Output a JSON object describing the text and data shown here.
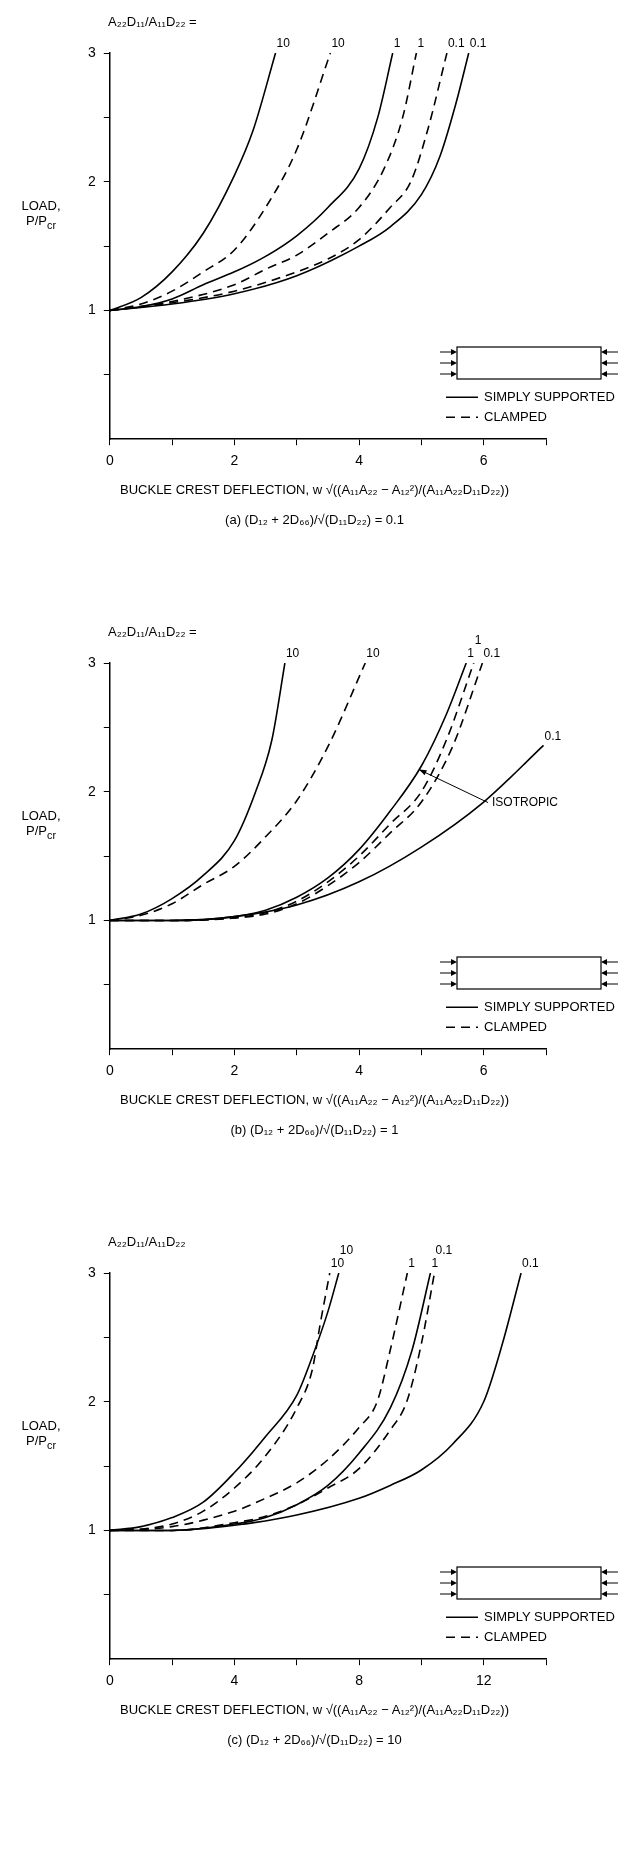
{
  "chart_data": [
    {
      "type": "line",
      "subtitle": "(a)   (D₁₂ + 2D₆₆)/√(D₁₁D₂₂)  =  0.1",
      "xlabel": "BUCKLE CREST DEFLECTION,  w √((A₁₁A₂₂ − A₁₂²)/(A₁₁A₂₂D₁₁D₂₂))",
      "ylabel": "LOAD, P/P$_{cr}$",
      "xlim": [
        0,
        7
      ],
      "xticks": [
        0,
        {
          "value": 1,
          "label": null
        },
        2,
        {
          "value": 3,
          "label": null
        },
        4,
        {
          "value": 5,
          "label": null
        },
        6,
        {
          "value": 7,
          "label": null
        }
      ],
      "ylim": [
        0,
        3
      ],
      "yticks": [
        {
          "value": 0.5,
          "label": null
        },
        1,
        {
          "value": 1.5,
          "label": null
        },
        2,
        {
          "value": 2.5,
          "label": null
        },
        3
      ],
      "grid": false,
      "legend": "bottom right",
      "marker": "none",
      "series": [
        {
          "name": "SIMPLY SUPPORTED",
          "color": "#000000",
          "line_style": "solid",
          "x": [
            0,
            0.5,
            1,
            1.5,
            2,
            2.3,
            2.66
          ],
          "values": [
            1,
            1.1,
            1.3,
            1.6,
            2.05,
            2.4,
            3
          ]
        },
        {
          "name": "CLAMPED",
          "color": "#000000",
          "line_style": "dashed",
          "x": [
            0,
            0.5,
            1,
            1.5,
            2,
            2.5,
            3,
            3.54
          ],
          "values": [
            1,
            1.05,
            1.15,
            1.3,
            1.47,
            1.8,
            2.25,
            3
          ]
        },
        {
          "color": "#000000",
          "line_style": "solid",
          "x": [
            0,
            0.5,
            1,
            1.5,
            2,
            2.5,
            3,
            3.5,
            4,
            4.3,
            4.54
          ],
          "values": [
            1,
            1.03,
            1.09,
            1.2,
            1.3,
            1.42,
            1.58,
            1.8,
            2.1,
            2.5,
            3
          ]
        },
        {
          "color": "#000000",
          "line_style": "dashed",
          "x": [
            0,
            1,
            2,
            2.5,
            3,
            3.5,
            4,
            4.4,
            4.7,
            4.92
          ],
          "values": [
            1,
            1.07,
            1.2,
            1.32,
            1.43,
            1.6,
            1.8,
            2.1,
            2.5,
            3
          ]
        },
        {
          "color": "#000000",
          "line_style": "dashed",
          "x": [
            0,
            1,
            2,
            3,
            3.5,
            4,
            4.5,
            4.83,
            5.1,
            5.41
          ],
          "values": [
            1,
            1.06,
            1.15,
            1.3,
            1.4,
            1.55,
            1.8,
            2,
            2.4,
            3
          ]
        },
        {
          "color": "#000000",
          "line_style": "solid",
          "x": [
            0,
            1,
            2,
            3,
            4,
            4.5,
            5,
            5.3,
            5.55,
            5.76
          ],
          "values": [
            1,
            1.05,
            1.13,
            1.27,
            1.5,
            1.65,
            1.9,
            2.2,
            2.6,
            3
          ]
        }
      ],
      "annotations": [
        "A₂₂D₁₁/A₁₁D₂₂  =",
        {
          "text": "10",
          "x": 2.66,
          "y": 3
        },
        {
          "text": "10",
          "x": 3.54,
          "y": 3
        },
        {
          "text": "1",
          "x": 4.54,
          "y": 3
        },
        {
          "text": "1",
          "x": 4.92,
          "y": 3
        },
        {
          "text": "0.1",
          "x": 5.41,
          "y": 3
        },
        {
          "text": "0.1",
          "x": 5.76,
          "y": 3
        }
      ]
    },
    {
      "type": "line",
      "subtitle": "(b)   (D₁₂ + 2D₆₆)/√(D₁₁D₂₂)  =  1",
      "xlabel": "BUCKLE CREST DEFLECTION,  w √((A₁₁A₂₂ − A₁₂²)/(A₁₁A₂₂D₁₁D₂₂))",
      "ylabel": "LOAD, P/P$_{cr}$",
      "xlim": [
        0,
        7
      ],
      "xticks": [
        0,
        {
          "value": 1,
          "label": null
        },
        2,
        {
          "value": 3,
          "label": null
        },
        4,
        {
          "value": 5,
          "label": null
        },
        6,
        {
          "value": 7,
          "label": null
        }
      ],
      "ylim": [
        0,
        3
      ],
      "yticks": [
        {
          "value": 0.5,
          "label": null
        },
        1,
        {
          "value": 1.5,
          "label": null
        },
        2,
        {
          "value": 2.5,
          "label": null
        },
        3
      ],
      "grid": false,
      "legend": "bottom right",
      "marker": "none",
      "series": [
        {
          "name": "SIMPLY SUPPORTED",
          "color": "#000000",
          "line_style": "solid",
          "x": [
            0,
            0.5,
            1,
            1.5,
            2,
            2.34,
            2.6,
            2.81
          ],
          "values": [
            1,
            1.05,
            1.17,
            1.35,
            1.62,
            2,
            2.4,
            3
          ]
        },
        {
          "name": "CLAMPED",
          "color": "#000000",
          "line_style": "dashed",
          "x": [
            0,
            0.5,
            1,
            1.5,
            2,
            2.5,
            3,
            3.5,
            4.1
          ],
          "values": [
            1,
            1.04,
            1.13,
            1.28,
            1.42,
            1.65,
            1.93,
            2.35,
            3
          ]
        },
        {
          "color": "#000000",
          "line_style": "solid",
          "x": [
            0,
            1,
            2,
            2.5,
            3,
            3.5,
            4,
            4.5,
            5,
            5.4,
            5.72
          ],
          "values": [
            1,
            1,
            1.03,
            1.08,
            1.18,
            1.33,
            1.55,
            1.85,
            2.2,
            2.6,
            3
          ]
        },
        {
          "color": "#000000",
          "line_style": "dashed",
          "x": [
            0,
            1,
            2,
            2.5,
            3,
            3.5,
            4,
            4.5,
            5,
            5.4,
            5.84
          ],
          "values": [
            1,
            1,
            1.02,
            1.06,
            1.15,
            1.3,
            1.5,
            1.75,
            2,
            2.4,
            3
          ]
        },
        {
          "color": "#000000",
          "line_style": "dashed",
          "x": [
            0,
            1,
            2,
            2.5,
            3,
            3.5,
            4,
            4.5,
            5,
            5.5,
            5.98
          ],
          "values": [
            1,
            1,
            1.02,
            1.05,
            1.13,
            1.27,
            1.45,
            1.68,
            1.92,
            2.35,
            3
          ]
        },
        {
          "color": "#000000",
          "line_style": "solid",
          "x": [
            0,
            1,
            2,
            3,
            4,
            5,
            6,
            6.96
          ],
          "values": [
            1,
            1,
            1.03,
            1.12,
            1.3,
            1.57,
            1.92,
            2.36
          ]
        }
      ],
      "annotations": [
        "A₂₂D₁₁/A₁₁D₂₂  =",
        {
          "text": "10",
          "x": 2.81,
          "y": 3
        },
        {
          "text": "10",
          "x": 4.1,
          "y": 3
        },
        {
          "text": "1",
          "x": 5.72,
          "y": 3
        },
        {
          "text": "1",
          "x": 5.84,
          "y": 3
        },
        {
          "text": "0.1",
          "x": 5.98,
          "y": 3
        },
        {
          "text": "0.1",
          "x": 6.96,
          "y": 2.36
        },
        {
          "text": "ISOTROPIC",
          "x": 4.93,
          "y": 2.18
        }
      ]
    },
    {
      "type": "line",
      "subtitle": "(c)   (D₁₂ + 2D₆₆)/√(D₁₁D₂₂)  =  10",
      "xlabel": "BUCKLE CREST DEFLECTION,  w √((A₁₁A₂₂ − A₁₂²)/(A₁₁A₂₂D₁₁D₂₂))",
      "ylabel": "LOAD, P/P$_{cr}$",
      "xlim": [
        0,
        14
      ],
      "xticks": [
        0,
        {
          "value": 2,
          "label": null
        },
        4,
        {
          "value": 6,
          "label": null
        },
        8,
        {
          "value": 10,
          "label": null
        },
        12,
        {
          "value": 14,
          "label": null
        }
      ],
      "ylim": [
        0,
        3
      ],
      "yticks": [
        {
          "value": 0.5,
          "label": null
        },
        1,
        {
          "value": 1.5,
          "label": null
        },
        2,
        {
          "value": 2.5,
          "label": null
        },
        3
      ],
      "grid": false,
      "legend": "bottom right",
      "marker": "none",
      "series": [
        {
          "name": "SIMPLY SUPPORTED",
          "color": "#000000",
          "line_style": "solid",
          "x": [
            0,
            1,
            2,
            3,
            4,
            5,
            6,
            6.5,
            7,
            7.35
          ],
          "values": [
            1,
            1.03,
            1.1,
            1.22,
            1.45,
            1.73,
            2.05,
            2.35,
            2.7,
            3
          ]
        },
        {
          "name": "CLAMPED",
          "color": "#000000",
          "line_style": "dashed",
          "x": [
            0,
            1,
            2,
            3,
            4,
            5,
            6,
            6.5,
            6.75,
            7.06
          ],
          "values": [
            1,
            1.01,
            1.05,
            1.15,
            1.33,
            1.58,
            1.95,
            2.25,
            2.6,
            3
          ]
        },
        {
          "color": "#000000",
          "line_style": "dashed",
          "x": [
            0,
            2,
            4,
            5,
            6,
            7,
            8,
            8.58,
            9,
            9.55
          ],
          "values": [
            1,
            1.03,
            1.15,
            1.25,
            1.37,
            1.55,
            1.8,
            2,
            2.4,
            3
          ]
        },
        {
          "color": "#000000",
          "line_style": "solid",
          "x": [
            0,
            2,
            4,
            5,
            6,
            7,
            8,
            9,
            9.7,
            10.29
          ],
          "values": [
            1,
            1,
            1.05,
            1.1,
            1.2,
            1.35,
            1.6,
            1.95,
            2.4,
            3
          ]
        },
        {
          "color": "#000000",
          "line_style": "dashed",
          "x": [
            0,
            2,
            4,
            5,
            6,
            7,
            8,
            9,
            9.53,
            10,
            10.42
          ],
          "values": [
            1,
            1,
            1.06,
            1.11,
            1.2,
            1.33,
            1.48,
            1.78,
            2,
            2.45,
            3
          ]
        },
        {
          "color": "#000000",
          "line_style": "solid",
          "x": [
            0,
            2,
            4,
            6,
            8,
            9,
            10,
            11,
            12,
            12.6,
            13.2
          ],
          "values": [
            1,
            1,
            1.04,
            1.12,
            1.25,
            1.35,
            1.47,
            1.67,
            2,
            2.45,
            3
          ]
        }
      ],
      "annotations": [
        "A₂₂D₁₁/A₁₁D₂₂",
        {
          "text": "10",
          "x": 7.06,
          "y": 3
        },
        {
          "text": "10",
          "x": 7.35,
          "y": 3
        },
        {
          "text": "1",
          "x": 9.55,
          "y": 3
        },
        {
          "text": "1",
          "x": 10.29,
          "y": 3
        },
        {
          "text": "0.1",
          "x": 10.42,
          "y": 3
        },
        {
          "text": "0.1",
          "x": 13.2,
          "y": 3
        }
      ]
    }
  ]
}
